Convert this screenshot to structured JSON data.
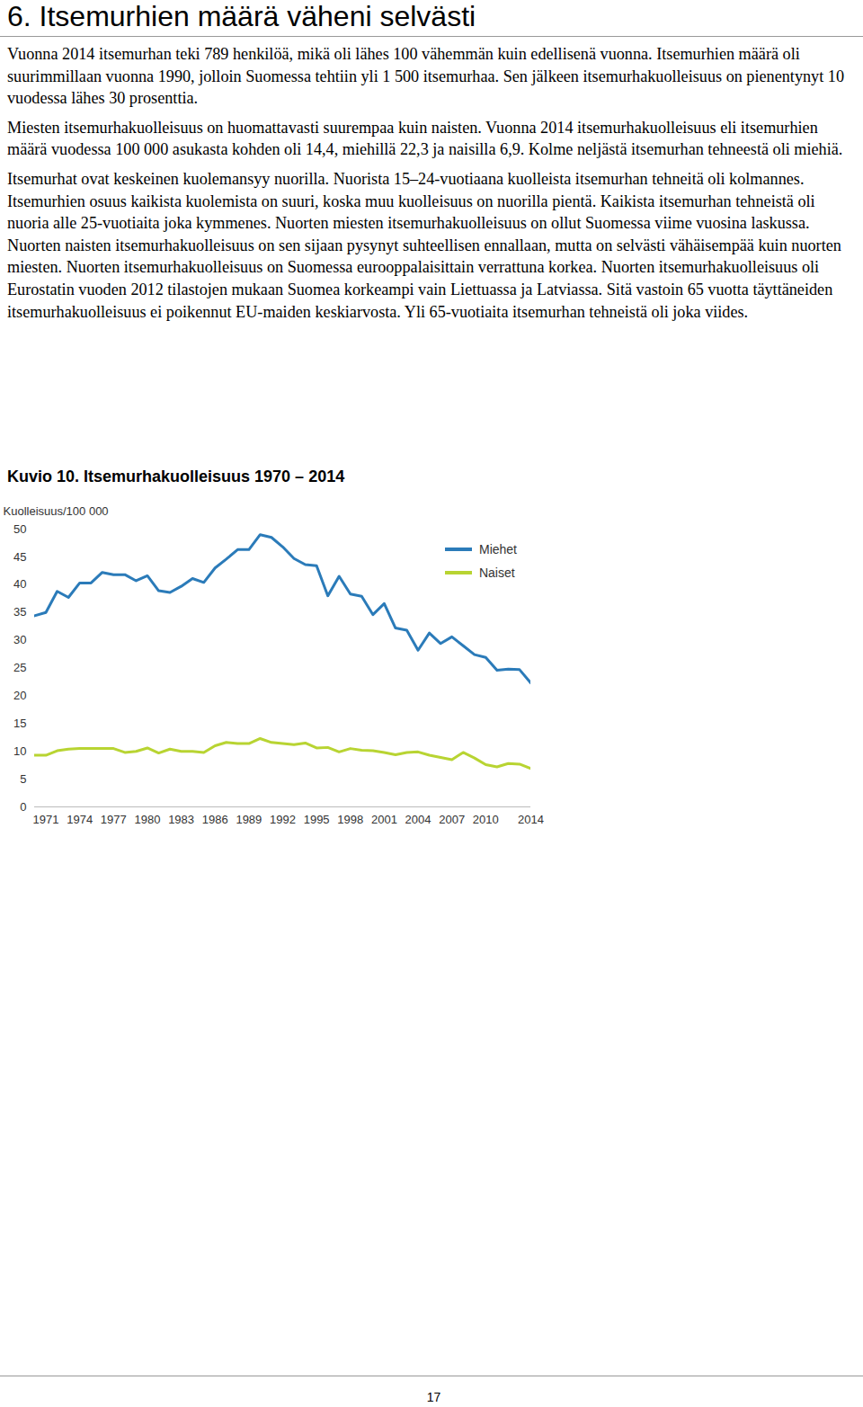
{
  "heading": "6. Itsemurhien määrä väheni selvästi",
  "paragraphs": [
    "Vuonna 2014 itsemurhan teki 789 henkilöä, mikä oli lähes 100 vähemmän kuin edellisenä vuonna. Itsemurhien määrä oli suurimmillaan vuonna 1990, jolloin Suomessa tehtiin yli 1 500 itsemurhaa. Sen jälkeen itsemurhakuolleisuus on pienentynyt 10 vuodessa lähes 30 prosenttia.",
    "Miesten itsemurhakuolleisuus on huomattavasti suurempaa kuin naisten. Vuonna 2014 itsemurhakuolleisuus eli itsemurhien määrä vuodessa 100 000 asukasta kohden oli 14,4, miehillä 22,3 ja naisilla 6,9. Kolme neljästä itsemurhan tehneestä oli miehiä.",
    "Itsemurhat ovat keskeinen kuolemansyy nuorilla. Nuorista 15–24-vuotiaana kuolleista itsemurhan tehneitä oli kolmannes. Itsemurhien osuus kaikista kuolemista on suuri, koska muu kuolleisuus on nuorilla pientä. Kaikista itsemurhan tehneistä oli nuoria alle 25-vuotiaita joka kymmenes. Nuorten miesten itsemurhakuolleisuus on ollut Suomessa viime vuosina laskussa. Nuorten naisten itsemurhakuolleisuus on sen sijaan pysynyt suhteellisen ennallaan, mutta on selvästi vähäisempää kuin nuorten miesten. Nuorten itsemurhakuolleisuus on Suomessa eurooppalaisittain verrattuna korkea. Nuorten itsemurhakuolleisuus oli Eurostatin vuoden 2012 tilastojen mukaan Suomea korkeampi vain Liettuassa ja Latviassa. Sitä vastoin 65 vuotta täyttäneiden itsemurhakuolleisuus ei poikennut EU-maiden keskiarvosta. Yli 65-vuotiaita itsemurhan tehneistä oli joka viides."
  ],
  "chart_data": {
    "type": "line",
    "title": "Kuvio 10. Itsemurhakuolleisuus 1970 – 2014",
    "y_label": "Kuolleisuus/100 000",
    "x": [
      1970,
      1971,
      1972,
      1973,
      1974,
      1975,
      1976,
      1977,
      1978,
      1979,
      1980,
      1981,
      1982,
      1983,
      1984,
      1985,
      1986,
      1987,
      1988,
      1989,
      1990,
      1991,
      1992,
      1993,
      1994,
      1995,
      1996,
      1997,
      1998,
      1999,
      2000,
      2001,
      2002,
      2003,
      2004,
      2005,
      2006,
      2007,
      2008,
      2009,
      2010,
      2011,
      2012,
      2013,
      2014
    ],
    "series": [
      {
        "name": "Miehet",
        "color": "#2b7bb9",
        "values": [
          34.4,
          35.0,
          38.8,
          37.7,
          40.3,
          40.3,
          42.2,
          41.8,
          41.8,
          40.7,
          41.6,
          38.9,
          38.6,
          39.7,
          41.1,
          40.4,
          43.0,
          44.6,
          46.3,
          46.3,
          49.0,
          48.5,
          46.8,
          44.7,
          43.6,
          43.4,
          38.0,
          41.5,
          38.3,
          37.9,
          34.6,
          36.6,
          32.2,
          31.8,
          28.2,
          31.3,
          29.4,
          30.6,
          29.0,
          27.4,
          26.9,
          24.6,
          24.8,
          24.7,
          22.3
        ]
      },
      {
        "name": "Naiset",
        "color": "#b8d432",
        "values": [
          9.3,
          9.3,
          10.1,
          10.4,
          10.5,
          10.5,
          10.5,
          10.5,
          9.8,
          10.0,
          10.6,
          9.7,
          10.4,
          10.0,
          10.0,
          9.8,
          11.0,
          11.6,
          11.4,
          11.4,
          12.3,
          11.6,
          11.4,
          11.2,
          11.5,
          10.6,
          10.7,
          9.9,
          10.5,
          10.2,
          10.1,
          9.8,
          9.4,
          9.8,
          9.9,
          9.3,
          8.9,
          8.5,
          9.8,
          8.8,
          7.6,
          7.2,
          7.8,
          7.7,
          6.9
        ]
      }
    ],
    "xlim": [
      1970,
      2014
    ],
    "xticks": [
      1971,
      1974,
      1977,
      1980,
      1983,
      1986,
      1989,
      1992,
      1995,
      1998,
      2001,
      2004,
      2007,
      2010,
      2014
    ],
    "ylim": [
      0,
      50
    ],
    "yticks": [
      0,
      5,
      10,
      15,
      20,
      25,
      30,
      35,
      40,
      45,
      50
    ],
    "grid": false,
    "legend": "top-right"
  },
  "page_number": "17"
}
